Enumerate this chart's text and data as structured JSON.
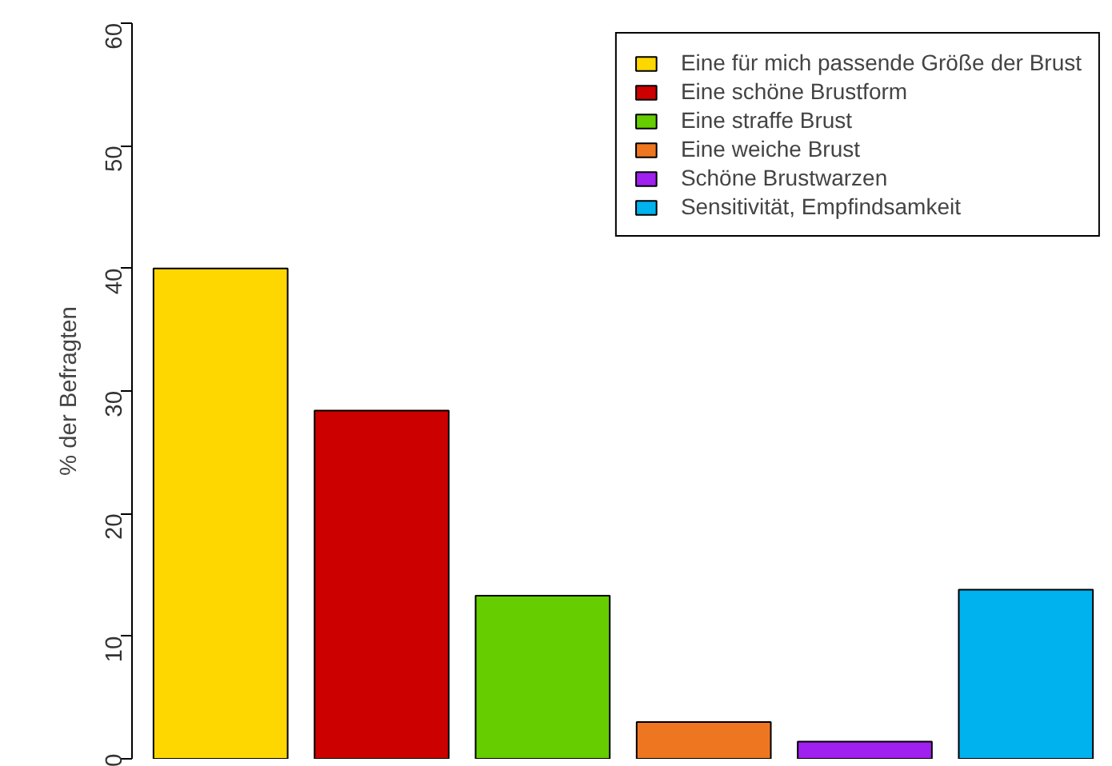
{
  "chart_data": {
    "type": "bar",
    "ylabel": "% der Befragten",
    "stacked": true,
    "categories": [
      null,
      null,
      null,
      null,
      null,
      null
    ],
    "series": [
      {
        "name": "Eine für mich passende Größe der Brust",
        "color": "#ffd700",
        "values": [
          40,
          null,
          null,
          null,
          null,
          null
        ]
      },
      {
        "name": "Eine schöne Brustform",
        "color": "#cd0000",
        "values": [
          null,
          28.4,
          null,
          null,
          null,
          null
        ]
      },
      {
        "name": "Eine straffe Brust",
        "color": "#66cd00",
        "values": [
          null,
          null,
          13.3,
          null,
          null,
          null
        ]
      },
      {
        "name": "Eine weiche Brust",
        "color": "#ee7621",
        "values": [
          null,
          null,
          null,
          3.0,
          null,
          null
        ]
      },
      {
        "name": "Schöne Brustwarzen",
        "color": "#a020f0",
        "values": [
          null,
          null,
          null,
          null,
          1.4,
          null
        ]
      },
      {
        "name": "Sensitivität, Empfindsamkeit",
        "color": "#00b2ee",
        "values": [
          null,
          null,
          null,
          null,
          null,
          13.8
        ]
      }
    ],
    "ylim": [
      0,
      60
    ],
    "yticks": [
      0,
      10,
      20,
      30,
      40,
      50,
      60
    ],
    "grid": false,
    "legend": "top right",
    "tick_labels": "y"
  }
}
